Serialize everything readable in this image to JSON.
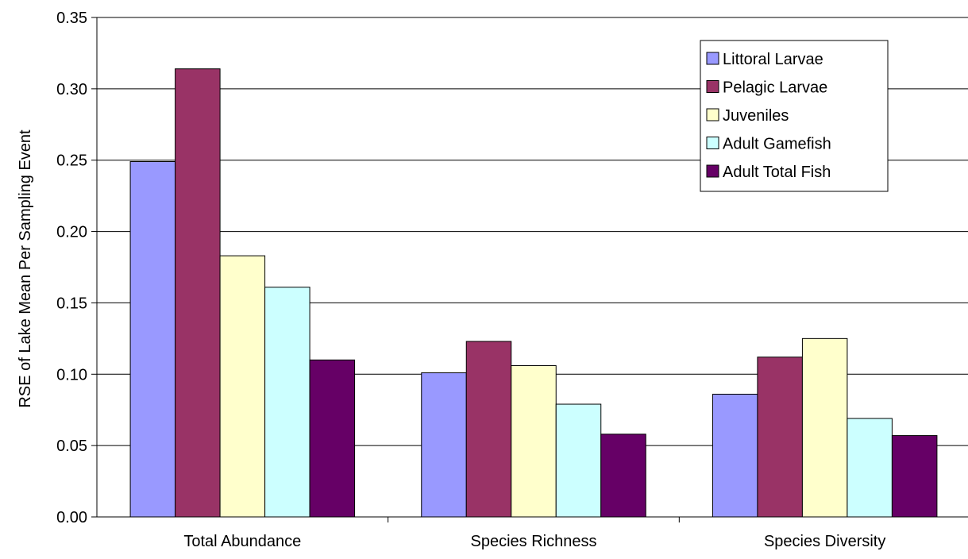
{
  "chart_data": {
    "type": "bar",
    "title": "",
    "xlabel": "",
    "ylabel": "RSE of Lake Mean Per Sampling Event",
    "ylim": [
      0,
      0.35
    ],
    "yticks": [
      "0.00",
      "0.05",
      "0.10",
      "0.15",
      "0.20",
      "0.25",
      "0.30",
      "0.35"
    ],
    "grid": true,
    "legend_position": "top-right",
    "categories": [
      "Total Abundance",
      "Species Richness",
      "Species Diversity"
    ],
    "series": [
      {
        "name": "Littoral Larvae",
        "color": "#9999ff",
        "values": [
          0.249,
          0.101,
          0.086
        ]
      },
      {
        "name": "Pelagic Larvae",
        "color": "#993366",
        "values": [
          0.314,
          0.123,
          0.112
        ]
      },
      {
        "name": "Juveniles",
        "color": "#ffffcc",
        "values": [
          0.183,
          0.106,
          0.125
        ]
      },
      {
        "name": "Adult Gamefish",
        "color": "#ccffff",
        "values": [
          0.161,
          0.079,
          0.069
        ]
      },
      {
        "name": "Adult Total Fish",
        "color": "#660066",
        "values": [
          0.11,
          0.058,
          0.057
        ]
      }
    ]
  }
}
